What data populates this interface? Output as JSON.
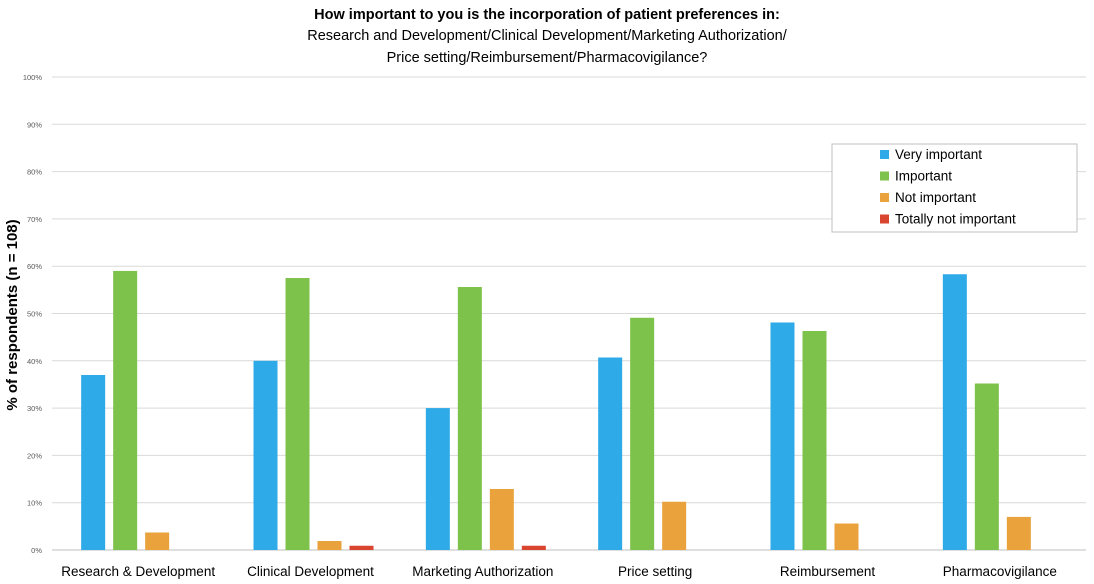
{
  "chart_data": {
    "type": "bar",
    "title": "How important to you is the incorporation of patient preferences in:",
    "subtitle_lines": [
      "Research and Development/Clinical Development/Marketing Authorization/",
      "Price setting/Reimbursement/Pharmacovigilance?"
    ],
    "xlabel": "",
    "ylabel": "% of respondents (n = 108)",
    "ylim": [
      0,
      100
    ],
    "yticks": [
      "0%",
      "10%",
      "20%",
      "30%",
      "40%",
      "50%",
      "60%",
      "70%",
      "80%",
      "90%",
      "100%"
    ],
    "grid": true,
    "legend_position": "top-right",
    "categories": [
      "Research & Development",
      "Clinical Development",
      "Marketing Authorization",
      "Price setting",
      "Reimbursement",
      "Pharmacovigilance"
    ],
    "series": [
      {
        "name": "Very important",
        "color": "#2FAAE8",
        "values": [
          37,
          40,
          30,
          40.7,
          48.1,
          58.3
        ]
      },
      {
        "name": "Important",
        "color": "#7DC24A",
        "values": [
          59,
          57.5,
          55.6,
          49.1,
          46.3,
          35.2
        ]
      },
      {
        "name": "Not important",
        "color": "#E9A23C",
        "values": [
          3.7,
          1.9,
          12.9,
          10.2,
          5.6,
          7.0
        ]
      },
      {
        "name": "Totally not important",
        "color": "#D9452F",
        "values": [
          0,
          0.9,
          0.9,
          0,
          0,
          0
        ]
      }
    ]
  }
}
